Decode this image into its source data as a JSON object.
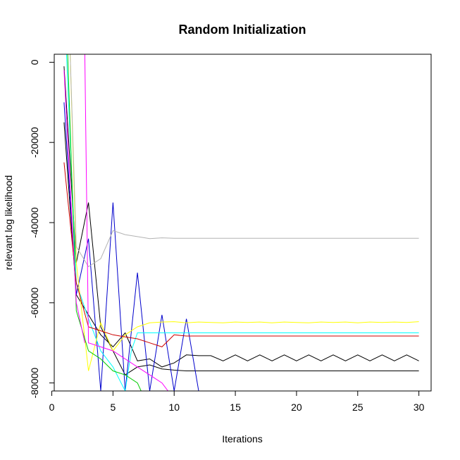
{
  "chart_data": {
    "type": "line",
    "title": "Random Initialization",
    "xlabel": "Iterations",
    "ylabel": "relevant log likelihood",
    "xlim": [
      0,
      31
    ],
    "ylim": [
      -81000,
      2000
    ],
    "xticks": [
      0,
      5,
      10,
      15,
      20,
      25,
      30
    ],
    "yticks": [
      0,
      -20000,
      -40000,
      -60000,
      -80000
    ],
    "grid": false,
    "legend": "none",
    "series": [
      {
        "color": "#000000",
        "x": [
          1,
          2,
          3,
          4,
          5,
          6,
          7,
          8,
          9,
          10,
          11,
          12,
          13,
          14,
          15,
          16,
          17,
          18,
          19,
          20,
          21,
          22,
          23,
          24,
          25,
          26,
          27,
          28,
          29,
          30
        ],
        "y": [
          -1000,
          -50000,
          -35000,
          -66000,
          -72000,
          -78000,
          -76000,
          -75500,
          -76500,
          -76800,
          -77000,
          -77000,
          -77000,
          -77000,
          -77000,
          -77000,
          -77000,
          -77000,
          -77000,
          -77000,
          -77000,
          -77000,
          -77000,
          -77000,
          -77000,
          -77000,
          -77000,
          -77000,
          -77000,
          -77000
        ]
      },
      {
        "color": "#000000",
        "x": [
          1,
          2,
          3,
          4,
          5,
          6,
          7,
          8,
          9,
          10,
          11,
          12,
          13,
          14,
          15,
          16,
          17,
          18,
          19,
          20,
          21,
          22,
          23,
          24,
          25,
          26,
          27,
          28,
          29,
          30
        ],
        "y": [
          -15000,
          -58000,
          -63000,
          -68000,
          -71000,
          -67500,
          -74500,
          -74000,
          -76000,
          -75000,
          -73000,
          -73200,
          -73200,
          -74500,
          -73000,
          -74500,
          -73000,
          -74500,
          -73000,
          -74500,
          -73000,
          -74500,
          -73000,
          -74500,
          -73000,
          -74500,
          -73000,
          -74500,
          -73000,
          -74500
        ]
      },
      {
        "color": "#0000cc",
        "x": [
          1,
          2,
          3,
          4,
          5,
          6,
          7,
          8,
          9,
          10,
          11,
          12
        ],
        "y": [
          -10000,
          -58000,
          -44000,
          -82000,
          -35000,
          -82000,
          -52500,
          -82000,
          -63000,
          -82000,
          -64000,
          -82000
        ]
      },
      {
        "color": "#00ffff",
        "x": [
          1.2,
          2,
          3,
          4,
          5,
          6,
          6.5,
          7,
          8,
          9,
          10,
          11,
          12,
          13,
          14,
          15,
          16,
          17,
          18,
          19,
          20,
          21,
          22,
          23,
          24,
          25,
          26,
          27,
          28,
          29,
          30
        ],
        "y": [
          2000,
          -55000,
          -64000,
          -72000,
          -76000,
          -82000,
          -72000,
          -67500,
          -67500,
          -67500,
          -67500,
          -67500,
          -67500,
          -67500,
          -67500,
          -67500,
          -67500,
          -67500,
          -67500,
          -67500,
          -67500,
          -67500,
          -67500,
          -67500,
          -67500,
          -67500,
          -67500,
          -67500,
          -67500,
          -67500,
          -67500
        ]
      },
      {
        "color": "#ffff00",
        "x": [
          1.5,
          2,
          3,
          4,
          5,
          6,
          7,
          8,
          9,
          10,
          11,
          12,
          13,
          14,
          15,
          16,
          17,
          18,
          19,
          20,
          21,
          22,
          23,
          24,
          25,
          26,
          27,
          28,
          29,
          30
        ],
        "y": [
          2000,
          -50000,
          -77000,
          -65000,
          -72000,
          -68000,
          -66000,
          -65000,
          -64800,
          -64700,
          -65000,
          -64800,
          -64900,
          -65000,
          -64800,
          -64900,
          -64800,
          -65000,
          -64800,
          -64900,
          -65000,
          -64800,
          -64900,
          -64800,
          -65000,
          -64800,
          -64900,
          -64800,
          -64900,
          -64700
        ]
      },
      {
        "color": "#cc0000",
        "x": [
          1,
          2,
          3,
          4,
          5,
          6,
          7,
          8,
          9,
          10,
          11,
          12,
          13,
          14,
          15,
          16,
          17,
          18,
          19,
          20,
          21,
          22,
          23,
          24,
          25,
          26,
          27,
          28,
          29,
          30
        ],
        "y": [
          -25000,
          -55000,
          -66000,
          -67000,
          -68000,
          -68500,
          -69000,
          -70000,
          -71000,
          -68000,
          -68300,
          -68300,
          -68300,
          -68300,
          -68300,
          -68300,
          -68300,
          -68300,
          -68300,
          -68300,
          -68300,
          -68300,
          -68300,
          -68300,
          -68300,
          -68300,
          -68300,
          -68300,
          -68300,
          -68300
        ]
      },
      {
        "color": "#00cc00",
        "x": [
          1.3,
          2,
          3,
          4,
          5,
          6,
          7,
          7.3
        ],
        "y": [
          2000,
          -62000,
          -72000,
          -74000,
          -77000,
          -78000,
          -80000,
          -82000
        ]
      },
      {
        "color": "#b3b3b3",
        "x": [
          1.5,
          2,
          3,
          4,
          5,
          6,
          7,
          8,
          9,
          10,
          11,
          12,
          13,
          14,
          15,
          16,
          17,
          18,
          19,
          20,
          21,
          22,
          23,
          24,
          25,
          26,
          27,
          28,
          29,
          30
        ],
        "y": [
          2000,
          -46000,
          -51000,
          -49000,
          -42000,
          -43000,
          -43500,
          -44000,
          -43800,
          -43900,
          -43900,
          -43900,
          -43900,
          -43900,
          -43900,
          -43900,
          -43900,
          -43900,
          -43900,
          -43900,
          -43900,
          -43900,
          -43900,
          -43900,
          -43900,
          -43900,
          -43900,
          -43900,
          -43900,
          -43900
        ]
      },
      {
        "color": "#ff00ff",
        "x": [
          2.7,
          3,
          4,
          5,
          6,
          7,
          8,
          9,
          9.5
        ],
        "y": [
          2000,
          -70000,
          -71000,
          -72000,
          -74000,
          -76000,
          -78000,
          -80000,
          -82000
        ]
      },
      {
        "color": "#ff00ff",
        "x": [
          1,
          2,
          2.7
        ],
        "y": [
          -2000,
          -60000,
          -70000
        ]
      }
    ]
  }
}
